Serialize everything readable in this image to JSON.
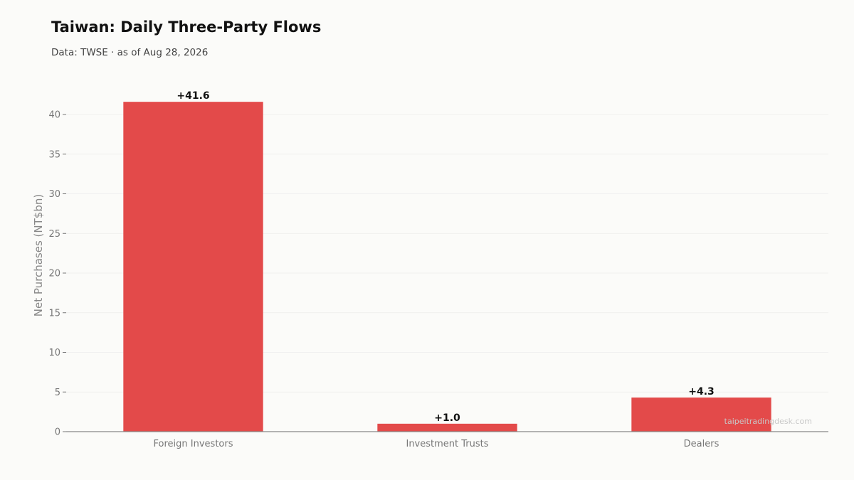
{
  "chart_data": {
    "type": "bar",
    "title": "Taiwan: Daily Three-Party Flows",
    "subtitle": "Data: TWSE · as of Aug 28, 2026",
    "ylabel": "Net Purchases (NT$bn)",
    "xlabel": "",
    "categories": [
      "Foreign Investors",
      "Investment Trusts",
      "Dealers"
    ],
    "values": [
      41.6,
      1.0,
      4.3
    ],
    "value_labels": [
      "+41.6",
      "+1.0",
      "+4.3"
    ],
    "ylim": [
      0,
      43.5
    ],
    "yticks": [
      0,
      5,
      10,
      15,
      20,
      25,
      30,
      35,
      40
    ],
    "grid": true,
    "bar_color": "#e34a4a",
    "watermark": "taipeitradingdesk.com"
  }
}
